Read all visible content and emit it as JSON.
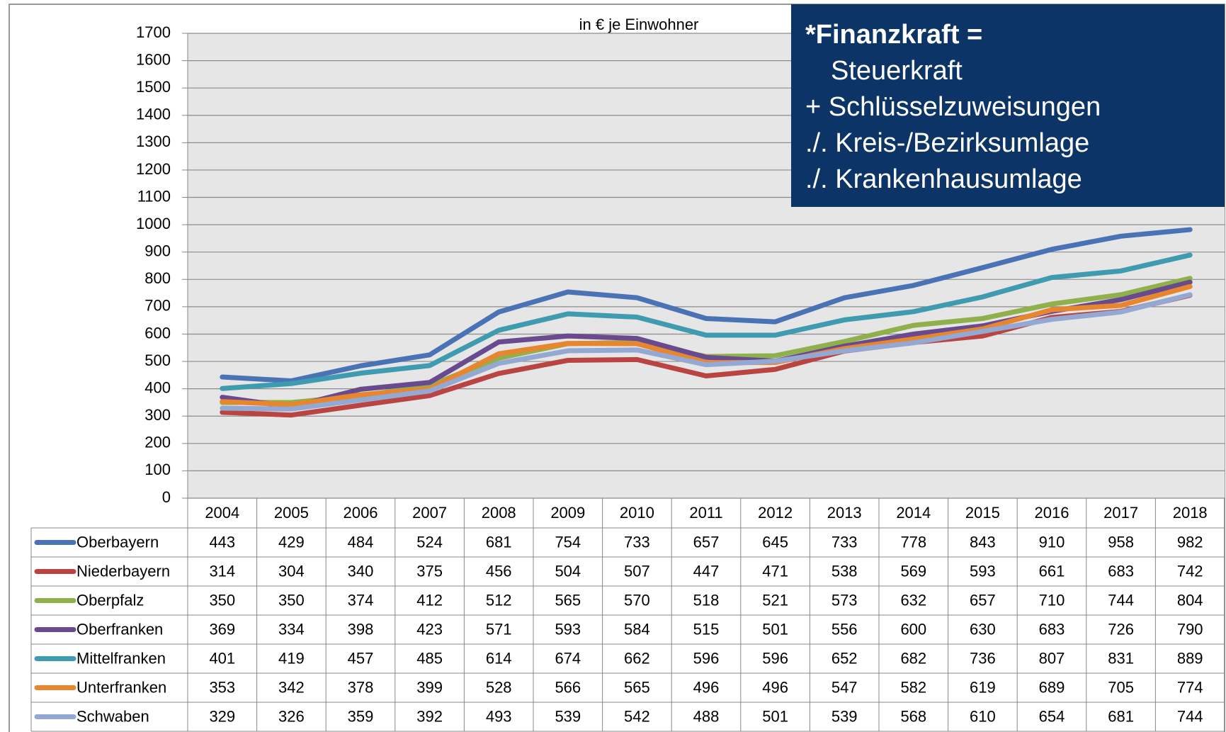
{
  "chart_data": {
    "type": "line",
    "subtitle": "in € je Einwohner",
    "categories": [
      "2004",
      "2005",
      "2006",
      "2007",
      "2008",
      "2009",
      "2010",
      "2011",
      "2012",
      "2013",
      "2014",
      "2015",
      "2016",
      "2017",
      "2018"
    ],
    "series": [
      {
        "name": "Oberbayern",
        "color": "#4a73b5",
        "values": [
          443,
          429,
          484,
          524,
          681,
          754,
          733,
          657,
          645,
          733,
          778,
          843,
          910,
          958,
          982
        ]
      },
      {
        "name": "Niederbayern",
        "color": "#b94442",
        "values": [
          314,
          304,
          340,
          375,
          456,
          504,
          507,
          447,
          471,
          538,
          569,
          593,
          661,
          683,
          742
        ]
      },
      {
        "name": "Oberpfalz",
        "color": "#8fb04a",
        "values": [
          350,
          350,
          374,
          412,
          512,
          565,
          570,
          518,
          521,
          573,
          632,
          657,
          710,
          744,
          804
        ]
      },
      {
        "name": "Oberfranken",
        "color": "#6a4a8f",
        "values": [
          369,
          334,
          398,
          423,
          571,
          593,
          584,
          515,
          501,
          556,
          600,
          630,
          683,
          726,
          790
        ]
      },
      {
        "name": "Mittelfranken",
        "color": "#3f9bb0",
        "values": [
          401,
          419,
          457,
          485,
          614,
          674,
          662,
          596,
          596,
          652,
          682,
          736,
          807,
          831,
          889
        ]
      },
      {
        "name": "Unterfranken",
        "color": "#e8852f",
        "values": [
          353,
          342,
          378,
          399,
          528,
          566,
          565,
          496,
          496,
          547,
          582,
          619,
          689,
          705,
          774
        ]
      },
      {
        "name": "Schwaben",
        "color": "#93a9d4",
        "values": [
          329,
          326,
          359,
          392,
          493,
          539,
          542,
          488,
          501,
          539,
          568,
          610,
          654,
          681,
          744
        ]
      }
    ],
    "ylim": [
      0,
      1700
    ],
    "yticks": [
      0,
      100,
      200,
      300,
      400,
      500,
      600,
      700,
      800,
      900,
      1000,
      1100,
      1200,
      1300,
      1400,
      1500,
      1600,
      1700
    ],
    "grid": true
  },
  "info_box": {
    "title": "*Finanzkraft =",
    "lines": [
      "Steuerkraft",
      "+ Schlüsselzuweisungen",
      "./. Kreis-/Bezirksumlage",
      "./. Krankenhausumlage"
    ]
  }
}
